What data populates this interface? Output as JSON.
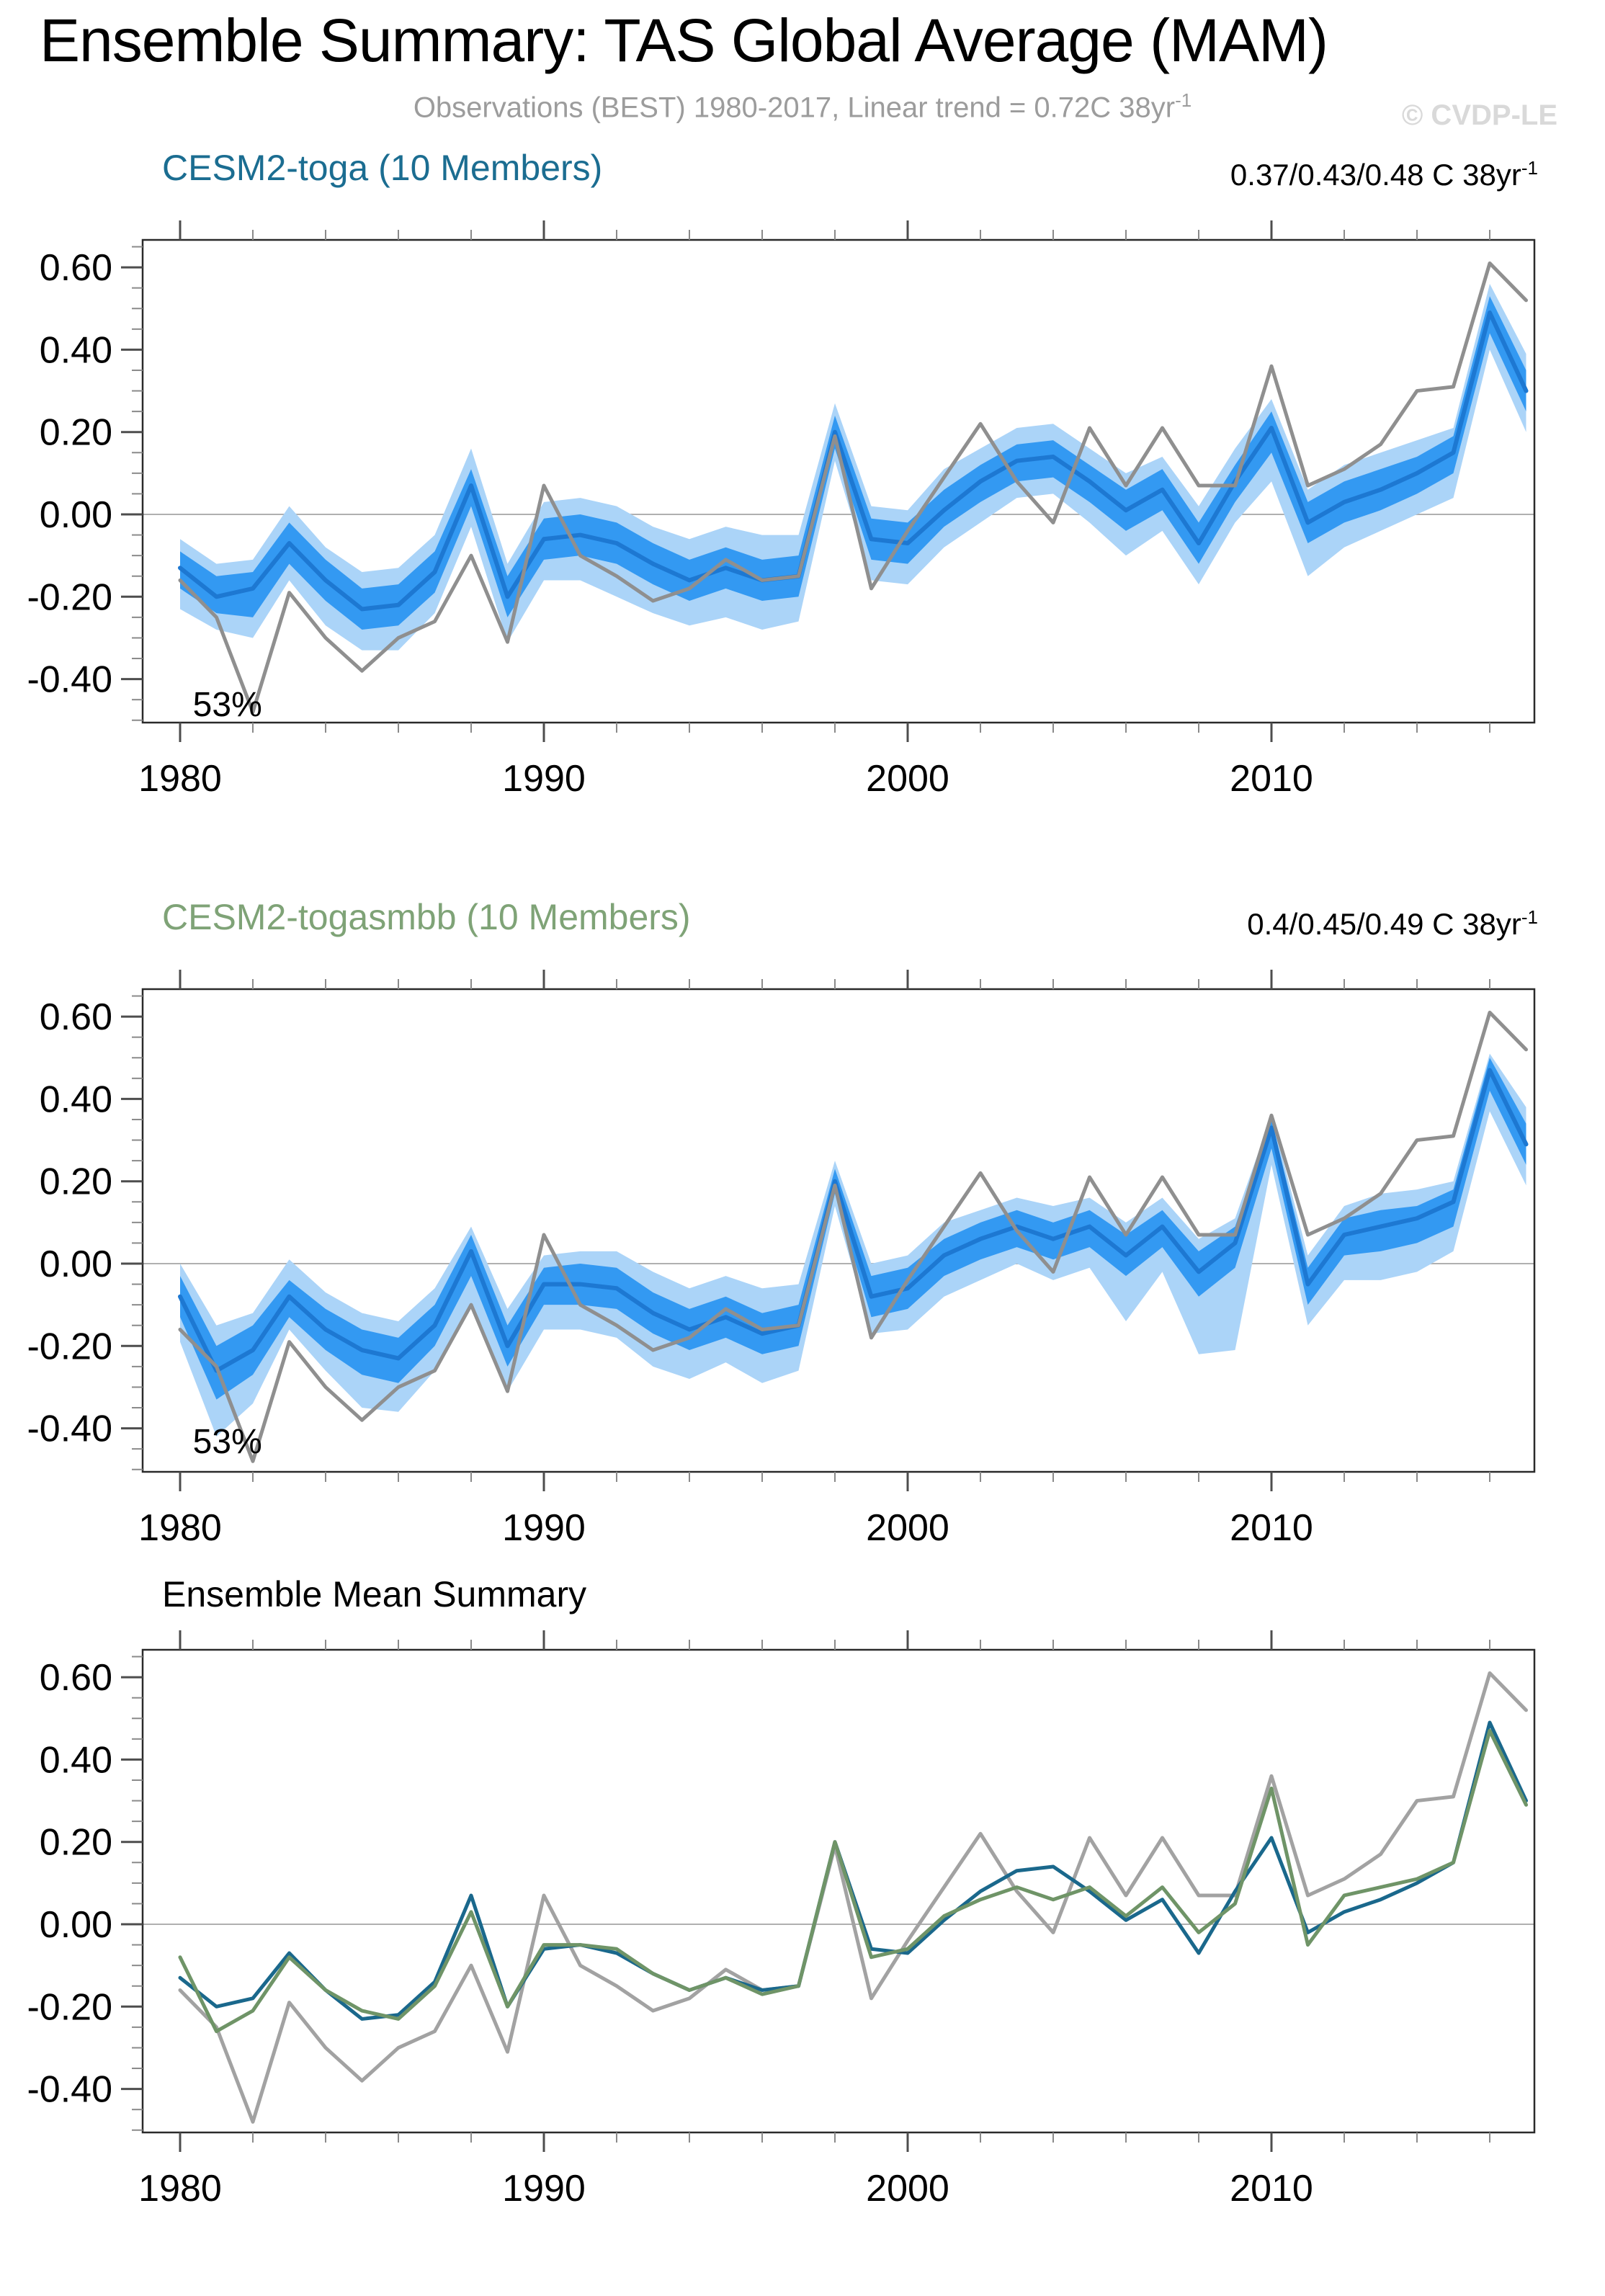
{
  "header": {
    "title": "Ensemble Summary: TAS Global Average (MAM)",
    "subtitle": "Observations (BEST) 1980-2017, Linear trend = 0.72C 38yr",
    "subtitle_sup": "-1",
    "watermark": "© CVDP-LE"
  },
  "colors": {
    "title": "#000000",
    "subtitle": "#9c9c9c",
    "watermark": "#d9d9d9",
    "frame": "#2a2a2a",
    "tick_major": "#4d4d4d",
    "tick_minor": "#8a8a8a",
    "zero_line": "#b0b0b0",
    "obs": "#8f8f8f",
    "obs_summary": "#a2a2a2",
    "ensemble_mean": "#1d78d2",
    "band_inner": "#3399f2",
    "band_outer": "#abd4f8",
    "toga_line": "#1a688c",
    "togasmbb_line": "#6f9467",
    "toga_title": "#1b6d91",
    "togasmbb_title": "#7fa377",
    "summary_title": "#000000",
    "annotation": "#000000"
  },
  "chart_data": {
    "type": "line",
    "title": "Ensemble Summary: TAS Global Average (MAM)",
    "xlabel": "",
    "ylabel": "",
    "xlim": [
      1979.0,
      2017.6
    ],
    "ylim": [
      -0.506,
      0.667
    ],
    "xticks": [
      1980,
      1990,
      2000,
      2010
    ],
    "xtick_labels": [
      "1980",
      "1990",
      "2000",
      "2010"
    ],
    "x_minor_step": 2,
    "yticks": [
      -0.4,
      -0.2,
      0.0,
      0.2,
      0.4,
      0.6
    ],
    "ytick_labels": [
      "-0.40",
      "-0.20",
      "0.00",
      "0.20",
      "0.40",
      "0.60"
    ],
    "y_minor_step": 0.05,
    "grid": "zero-line-only",
    "legend": "none",
    "x_years": [
      1980,
      1981,
      1982,
      1983,
      1984,
      1985,
      1986,
      1987,
      1988,
      1989,
      1990,
      1991,
      1992,
      1993,
      1994,
      1995,
      1996,
      1997,
      1998,
      1999,
      2000,
      2001,
      2002,
      2003,
      2004,
      2005,
      2006,
      2007,
      2008,
      2009,
      2010,
      2011,
      2012,
      2013,
      2014,
      2015,
      2016,
      2017
    ],
    "series": {
      "obs": [
        -0.16,
        -0.25,
        -0.48,
        -0.19,
        -0.3,
        -0.38,
        -0.3,
        -0.26,
        -0.1,
        -0.31,
        0.07,
        -0.1,
        -0.15,
        -0.21,
        -0.18,
        -0.11,
        -0.16,
        -0.15,
        0.19,
        -0.18,
        -0.04,
        0.09,
        0.22,
        0.08,
        -0.02,
        0.21,
        0.07,
        0.21,
        0.07,
        0.07,
        0.36,
        0.07,
        0.11,
        0.17,
        0.3,
        0.31,
        0.61,
        0.52
      ],
      "toga_mean": [
        -0.13,
        -0.2,
        -0.18,
        -0.07,
        -0.16,
        -0.23,
        -0.22,
        -0.14,
        0.07,
        -0.2,
        -0.06,
        -0.05,
        -0.07,
        -0.12,
        -0.16,
        -0.13,
        -0.16,
        -0.15,
        0.2,
        -0.06,
        -0.07,
        0.01,
        0.08,
        0.13,
        0.14,
        0.08,
        0.01,
        0.06,
        -0.07,
        0.08,
        0.21,
        -0.02,
        0.03,
        0.06,
        0.1,
        0.15,
        0.49,
        0.3
      ],
      "toga_inner_lo": [
        -0.18,
        -0.24,
        -0.25,
        -0.12,
        -0.21,
        -0.28,
        -0.27,
        -0.19,
        0.02,
        -0.25,
        -0.11,
        -0.1,
        -0.12,
        -0.17,
        -0.21,
        -0.18,
        -0.21,
        -0.2,
        0.16,
        -0.11,
        -0.12,
        -0.03,
        0.03,
        0.08,
        0.09,
        0.03,
        -0.04,
        0.01,
        -0.12,
        0.03,
        0.15,
        -0.07,
        -0.02,
        0.01,
        0.05,
        0.1,
        0.44,
        0.25
      ],
      "toga_inner_hi": [
        -0.09,
        -0.15,
        -0.14,
        -0.02,
        -0.11,
        -0.18,
        -0.17,
        -0.09,
        0.11,
        -0.15,
        -0.01,
        0.0,
        -0.02,
        -0.07,
        -0.11,
        -0.08,
        -0.11,
        -0.1,
        0.24,
        -0.01,
        -0.02,
        0.06,
        0.12,
        0.17,
        0.18,
        0.12,
        0.06,
        0.11,
        -0.02,
        0.12,
        0.25,
        0.03,
        0.08,
        0.11,
        0.14,
        0.19,
        0.53,
        0.35
      ],
      "toga_outer_lo": [
        -0.23,
        -0.28,
        -0.3,
        -0.16,
        -0.27,
        -0.33,
        -0.33,
        -0.24,
        -0.03,
        -0.31,
        -0.16,
        -0.16,
        -0.2,
        -0.24,
        -0.27,
        -0.25,
        -0.28,
        -0.26,
        0.13,
        -0.16,
        -0.17,
        -0.08,
        -0.02,
        0.04,
        0.05,
        -0.02,
        -0.1,
        -0.04,
        -0.17,
        -0.02,
        0.08,
        -0.15,
        -0.08,
        -0.04,
        0.0,
        0.04,
        0.4,
        0.2
      ],
      "toga_outer_hi": [
        -0.06,
        -0.12,
        -0.11,
        0.02,
        -0.08,
        -0.14,
        -0.13,
        -0.05,
        0.16,
        -0.12,
        0.03,
        0.04,
        0.02,
        -0.03,
        -0.06,
        -0.03,
        -0.05,
        -0.05,
        0.27,
        0.02,
        0.01,
        0.11,
        0.16,
        0.21,
        0.22,
        0.16,
        0.1,
        0.14,
        0.02,
        0.16,
        0.28,
        0.06,
        0.12,
        0.15,
        0.18,
        0.21,
        0.56,
        0.39
      ],
      "togasmbb_mean": [
        -0.08,
        -0.26,
        -0.21,
        -0.08,
        -0.16,
        -0.21,
        -0.23,
        -0.15,
        0.03,
        -0.2,
        -0.05,
        -0.05,
        -0.06,
        -0.12,
        -0.16,
        -0.13,
        -0.17,
        -0.15,
        0.2,
        -0.08,
        -0.06,
        0.02,
        0.06,
        0.09,
        0.06,
        0.09,
        0.02,
        0.09,
        -0.02,
        0.05,
        0.33,
        -0.05,
        0.07,
        0.09,
        0.11,
        0.15,
        0.47,
        0.29
      ],
      "togasmbb_inner_lo": [
        -0.13,
        -0.33,
        -0.27,
        -0.13,
        -0.21,
        -0.27,
        -0.29,
        -0.2,
        -0.03,
        -0.25,
        -0.1,
        -0.1,
        -0.11,
        -0.17,
        -0.21,
        -0.18,
        -0.22,
        -0.2,
        0.17,
        -0.13,
        -0.11,
        -0.03,
        0.01,
        0.04,
        0.01,
        0.04,
        -0.03,
        0.04,
        -0.08,
        -0.01,
        0.28,
        -0.1,
        0.02,
        0.03,
        0.05,
        0.09,
        0.42,
        0.24
      ],
      "togasmbb_inner_hi": [
        -0.03,
        -0.2,
        -0.15,
        -0.04,
        -0.11,
        -0.16,
        -0.18,
        -0.1,
        0.07,
        -0.15,
        -0.01,
        0.0,
        -0.01,
        -0.07,
        -0.11,
        -0.08,
        -0.12,
        -0.1,
        0.23,
        -0.03,
        -0.01,
        0.06,
        0.1,
        0.13,
        0.1,
        0.13,
        0.07,
        0.13,
        0.03,
        0.09,
        0.35,
        -0.01,
        0.11,
        0.13,
        0.14,
        0.18,
        0.5,
        0.34
      ],
      "togasmbb_outer_lo": [
        -0.19,
        -0.42,
        -0.34,
        -0.16,
        -0.26,
        -0.35,
        -0.36,
        -0.26,
        -0.1,
        -0.31,
        -0.16,
        -0.16,
        -0.18,
        -0.25,
        -0.28,
        -0.24,
        -0.29,
        -0.26,
        0.14,
        -0.17,
        -0.16,
        -0.08,
        -0.04,
        0.0,
        -0.04,
        -0.01,
        -0.14,
        -0.02,
        -0.22,
        -0.21,
        0.24,
        -0.15,
        -0.04,
        -0.04,
        -0.02,
        0.03,
        0.37,
        0.19
      ],
      "togasmbb_outer_hi": [
        0.0,
        -0.15,
        -0.12,
        0.01,
        -0.07,
        -0.12,
        -0.14,
        -0.06,
        0.09,
        -0.11,
        0.02,
        0.03,
        0.03,
        -0.02,
        -0.06,
        -0.03,
        -0.06,
        -0.05,
        0.25,
        0.0,
        0.02,
        0.1,
        0.13,
        0.16,
        0.14,
        0.16,
        0.1,
        0.16,
        0.06,
        0.11,
        0.36,
        0.02,
        0.14,
        0.17,
        0.18,
        0.2,
        0.51,
        0.38
      ]
    },
    "panels": [
      {
        "name": "cesm2-toga",
        "title": "CESM2-toga (10 Members)",
        "title_color": "#1b6d91",
        "trend": "0.37/0.43/0.48 C 38yr",
        "trend_sup": "-1",
        "annotation": {
          "text": "53%",
          "year": 1980.35,
          "value": -0.49
        },
        "layers": [
          {
            "kind": "band",
            "lo": "toga_outer_lo",
            "hi": "toga_outer_hi",
            "color_key": "band_outer",
            "name": "toga-outer-band"
          },
          {
            "kind": "band",
            "lo": "toga_inner_lo",
            "hi": "toga_inner_hi",
            "color_key": "band_inner",
            "name": "toga-inner-band"
          },
          {
            "kind": "line",
            "y": "toga_mean",
            "color_key": "ensemble_mean",
            "width": 6,
            "name": "toga-ensemble-mean-line"
          },
          {
            "kind": "line",
            "y": "obs",
            "color_key": "obs",
            "width": 5,
            "name": "observations-line"
          }
        ]
      },
      {
        "name": "cesm2-togasmbb",
        "title": "CESM2-togasmbb (10 Members)",
        "title_color": "#7fa377",
        "trend": "0.4/0.45/0.49 C 38yr",
        "trend_sup": "-1",
        "annotation": {
          "text": "53%",
          "year": 1980.35,
          "value": -0.46
        },
        "layers": [
          {
            "kind": "band",
            "lo": "togasmbb_outer_lo",
            "hi": "togasmbb_outer_hi",
            "color_key": "band_outer",
            "name": "togasmbb-outer-band"
          },
          {
            "kind": "band",
            "lo": "togasmbb_inner_lo",
            "hi": "togasmbb_inner_hi",
            "color_key": "band_inner",
            "name": "togasmbb-inner-band"
          },
          {
            "kind": "line",
            "y": "togasmbb_mean",
            "color_key": "ensemble_mean",
            "width": 6,
            "name": "togasmbb-ensemble-mean-line"
          },
          {
            "kind": "line",
            "y": "obs",
            "color_key": "obs",
            "width": 5,
            "name": "observations-line"
          }
        ]
      },
      {
        "name": "ensemble-mean-summary",
        "title": "Ensemble Mean Summary",
        "title_color": "#000000",
        "trend": "",
        "trend_sup": "",
        "annotation": null,
        "layers": [
          {
            "kind": "line",
            "y": "obs",
            "color_key": "obs_summary",
            "width": 5,
            "name": "observations-line"
          },
          {
            "kind": "line",
            "y": "toga_mean",
            "color_key": "toga_line",
            "width": 5,
            "name": "toga-mean-line"
          },
          {
            "kind": "line",
            "y": "togasmbb_mean",
            "color_key": "togasmbb_line",
            "width": 5,
            "name": "togasmbb-mean-line"
          }
        ]
      }
    ]
  }
}
